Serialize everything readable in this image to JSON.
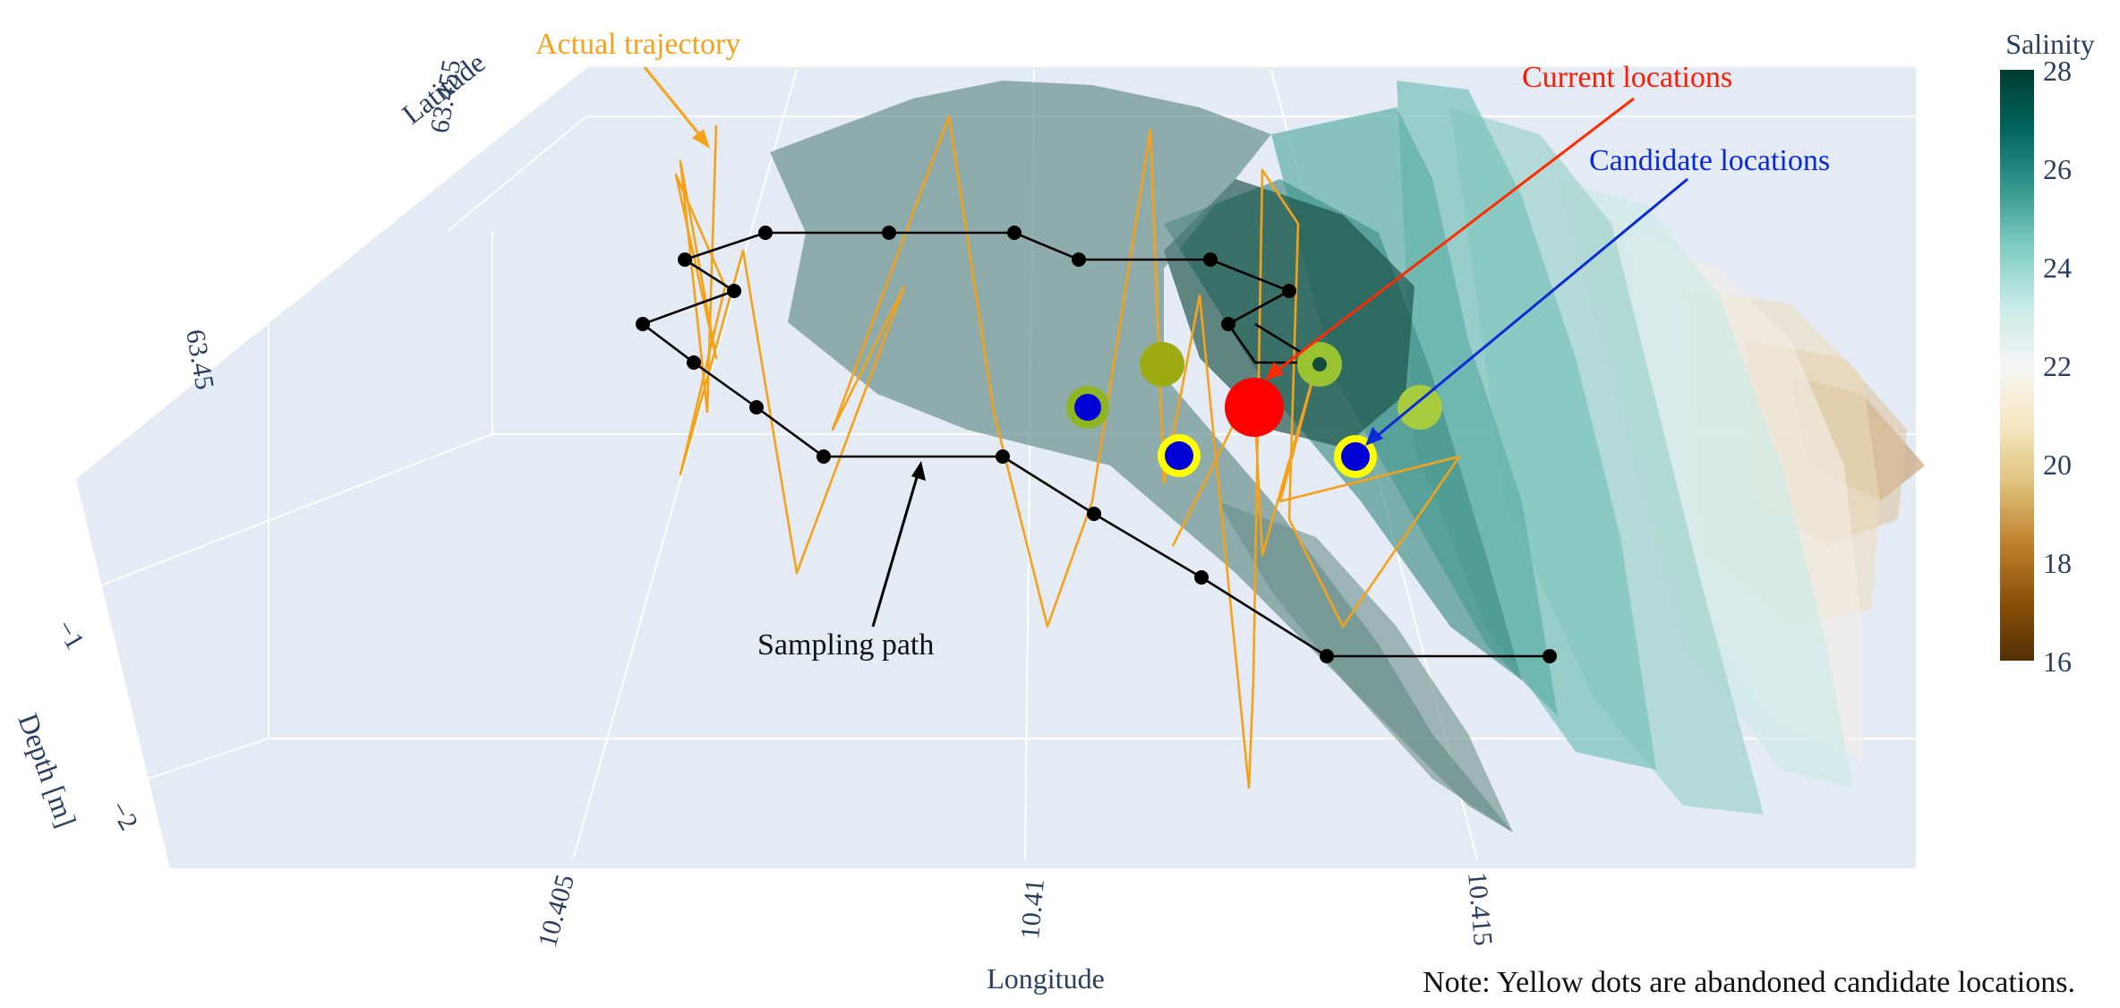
{
  "chart_data": {
    "type": "scatter3d",
    "axes": {
      "x": {
        "label": "Longitude",
        "ticks": [
          "10.405",
          "10.41",
          "10.415"
        ]
      },
      "y": {
        "label": "Latitude",
        "ticks": [
          "63.45",
          "63.455"
        ]
      },
      "z": {
        "label": "Depth [m]",
        "ticks": [
          "−1",
          "−2"
        ]
      }
    },
    "colorbar": {
      "title": "Salinity",
      "ticks": [
        "28",
        "26",
        "24",
        "22",
        "20",
        "18",
        "16"
      ],
      "range": [
        16,
        28
      ],
      "colorscale": [
        "#003c30",
        "#01665e",
        "#35978f",
        "#80cdc1",
        "#c7eae5",
        "#f5f5f5",
        "#f6e8c3",
        "#dfc27d",
        "#bf812d",
        "#8c510a",
        "#543005"
      ]
    },
    "annotations": {
      "actual_trajectory": "Actual trajectory",
      "current_locations": "Current locations",
      "candidate_locations": "Candidate locations",
      "sampling_path": "Sampling path",
      "note": "Note: Yellow dots are abandoned candidate locations."
    },
    "series": [
      {
        "name": "Actual trajectory",
        "color": "#f5a21b"
      },
      {
        "name": "Sampling path",
        "color": "#000000"
      },
      {
        "name": "Current locations",
        "color": "#ff0000"
      },
      {
        "name": "Candidate locations",
        "color": "#0000d6"
      }
    ]
  }
}
